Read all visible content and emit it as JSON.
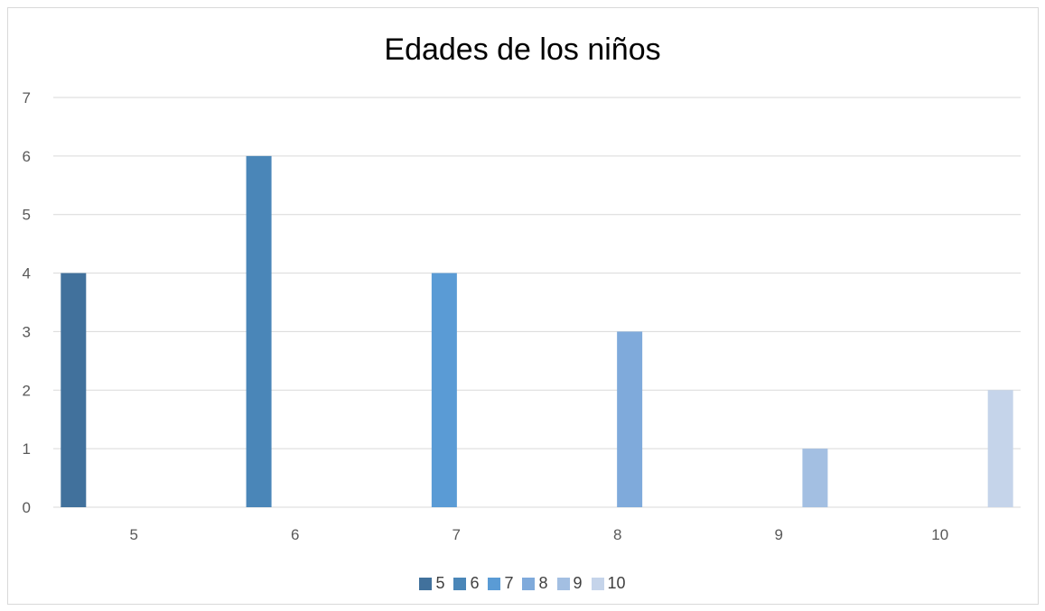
{
  "chart_data": {
    "type": "bar",
    "title": "Edades de los niños",
    "categories": [
      "5",
      "6",
      "7",
      "8",
      "9",
      "10"
    ],
    "series": [
      {
        "name": "5",
        "values": [
          4,
          null,
          null,
          null,
          null,
          null
        ],
        "color": "#41719c"
      },
      {
        "name": "6",
        "values": [
          null,
          6,
          null,
          null,
          null,
          null
        ],
        "color": "#4a86b8"
      },
      {
        "name": "7",
        "values": [
          null,
          null,
          4,
          null,
          null,
          null
        ],
        "color": "#5a9bd5"
      },
      {
        "name": "8",
        "values": [
          null,
          null,
          null,
          3,
          null,
          null
        ],
        "color": "#7faadb"
      },
      {
        "name": "9",
        "values": [
          null,
          null,
          null,
          null,
          1,
          null
        ],
        "color": "#a3bfe2"
      },
      {
        "name": "10",
        "values": [
          null,
          null,
          null,
          null,
          null,
          2
        ],
        "color": "#c5d4ea"
      }
    ],
    "ylim": [
      0,
      7
    ],
    "yticks": [
      0,
      1,
      2,
      3,
      4,
      5,
      6,
      7
    ],
    "grid": true,
    "legend_position": "bottom"
  }
}
